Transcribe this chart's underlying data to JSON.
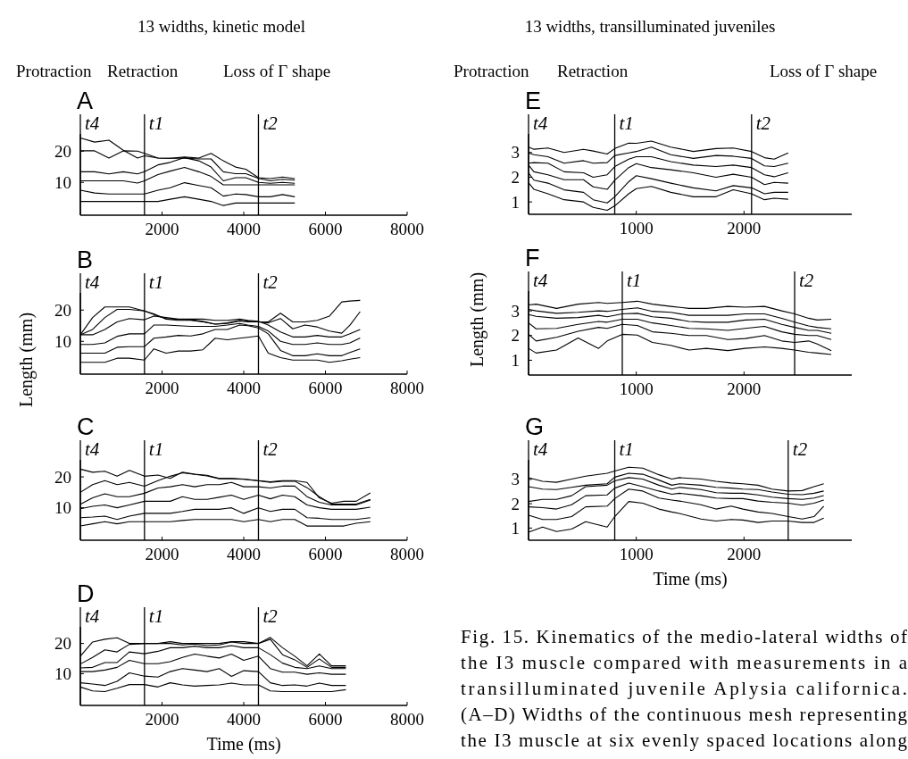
{
  "chart_data": [
    {
      "type": "line",
      "title": "A",
      "annotations": [
        "13 widths, kinetic model",
        "Protraction",
        "Retraction",
        "Loss of Γ shape"
      ],
      "xlim": [
        0,
        8000
      ],
      "ylim": [
        -0.5,
        25.5
      ],
      "xticks": [
        2000,
        4000,
        6000,
        8000
      ],
      "yticks": [
        10,
        20
      ],
      "x": [
        0,
        350,
        700,
        1050,
        1400,
        1570,
        1900,
        2200,
        2550,
        2900,
        3200,
        3500,
        3800,
        4050,
        4360,
        4650,
        4950,
        5250
      ],
      "ref_lines": [
        {
          "axis": "x",
          "value": 0,
          "label": "t4"
        },
        {
          "axis": "x",
          "value": 1570,
          "label": "t1"
        },
        {
          "axis": "x",
          "value": 4360,
          "label": "t2"
        }
      ],
      "series": [
        {
          "color": "#000000",
          "values": [
            24.2,
            22.9,
            23.5,
            20.3,
            17.8,
            18.5,
            17.8,
            17.7,
            18.1,
            17.8,
            19.3,
            16.9,
            14.9,
            14.2,
            11.5,
            11.2,
            11.7,
            11.2
          ]
        },
        {
          "color": "#000000",
          "values": [
            20.1,
            20.1,
            17.8,
            20.1,
            20,
            19.3,
            17.8,
            17.7,
            17.8,
            17.5,
            17.5,
            13.4,
            12.8,
            12.8,
            11.3,
            10.5,
            11,
            10.7
          ]
        },
        {
          "color": "#000000",
          "values": [
            13.4,
            13.4,
            12.7,
            13.4,
            12.7,
            13.4,
            15.6,
            16.4,
            17.9,
            16.9,
            14.9,
            10.5,
            11.5,
            11.5,
            10,
            9.7,
            10,
            9.7
          ]
        },
        {
          "color": "#000000",
          "values": [
            10.5,
            10.5,
            10.5,
            10.5,
            9.8,
            10.5,
            12.5,
            13.6,
            14.8,
            13.4,
            11.9,
            9.2,
            9.2,
            9.2,
            9.2,
            9.2,
            9.2,
            9.2
          ]
        },
        {
          "color": "#000000",
          "values": [
            7.5,
            6.6,
            6.3,
            6.3,
            6.3,
            6.3,
            7.5,
            8.3,
            9.9,
            9,
            8.3,
            5.6,
            6.3,
            6.1,
            5.4,
            5.4,
            6.1,
            5.4
          ]
        },
        {
          "color": "#000000",
          "values": [
            3.9,
            3.9,
            3.9,
            3.9,
            3.9,
            3.9,
            3.9,
            4.6,
            5.4,
            4.6,
            3.9,
            2.6,
            3.4,
            3.4,
            3.4,
            3.4,
            3.4,
            3.4
          ]
        }
      ]
    },
    {
      "type": "line",
      "title": "B",
      "ylabel": "Length (mm)",
      "xlim": [
        0,
        8000
      ],
      "ylim": [
        -0.5,
        25.5
      ],
      "xticks": [
        2000,
        4000,
        6000,
        8000
      ],
      "yticks": [
        10,
        20
      ],
      "x": [
        0,
        300,
        600,
        900,
        1200,
        1570,
        1800,
        2100,
        2400,
        2700,
        3000,
        3300,
        3600,
        3900,
        4100,
        4360,
        4600,
        4900,
        5200,
        5500,
        5800,
        6100,
        6400,
        6600,
        6850
      ],
      "ref_lines": [
        {
          "axis": "x",
          "value": 0,
          "label": "t4"
        },
        {
          "axis": "x",
          "value": 1570,
          "label": "t1"
        },
        {
          "axis": "x",
          "value": 4360,
          "label": "t2"
        }
      ],
      "series": [
        {
          "color": "#000000",
          "values": [
            12.1,
            17.6,
            21,
            21,
            21,
            19.7,
            18.6,
            17.3,
            17,
            16.9,
            16.4,
            15.5,
            15.9,
            16.7,
            16.5,
            16.2,
            16.2,
            19,
            16.2,
            16.2,
            16.7,
            18.1,
            22.6,
            22.9,
            23.1
          ]
        },
        {
          "color": "#000000",
          "values": [
            12.1,
            13.8,
            17.6,
            20.2,
            20.2,
            19.7,
            18.8,
            17.1,
            16.7,
            16.7,
            16.2,
            15.5,
            15.7,
            16.5,
            16.2,
            16.2,
            15.9,
            17.3,
            14,
            15.2,
            14.6,
            13.3,
            12.6,
            15.2,
            19.5
          ]
        },
        {
          "color": "#000000",
          "values": [
            12.1,
            12.1,
            13.8,
            16.2,
            17.3,
            16.9,
            18.1,
            17.6,
            17.1,
            17.1,
            17.1,
            16.7,
            16.7,
            17.1,
            16.7,
            16.4,
            15.2,
            13,
            11.4,
            11.4,
            11.9,
            11.4,
            11.4,
            12.4,
            13.8
          ]
        },
        {
          "color": "#000000",
          "values": [
            9,
            9,
            9.5,
            11.6,
            12.4,
            12.4,
            15.2,
            15.2,
            15,
            14.8,
            14.8,
            14.8,
            15.2,
            15.7,
            15.2,
            14.8,
            13.3,
            10,
            9,
            9,
            9.5,
            9,
            9,
            9.5,
            11.1
          ]
        },
        {
          "color": "#000000",
          "values": [
            6.2,
            6.2,
            6.2,
            8.1,
            8.3,
            8.3,
            11,
            11.4,
            11.9,
            11.7,
            12.4,
            13.8,
            13.8,
            15.2,
            15,
            14.3,
            12.4,
            7.1,
            5.4,
            5.4,
            6,
            5.4,
            5.4,
            6.4,
            7.6
          ]
        },
        {
          "color": "#000000",
          "values": [
            3.3,
            3.3,
            3.3,
            4.6,
            4.6,
            4,
            7.6,
            6.2,
            6.9,
            6.9,
            7.3,
            11,
            10.5,
            11,
            11.3,
            11.7,
            6.2,
            4.8,
            4,
            4,
            4,
            3.3,
            3.8,
            4.3,
            4.8
          ]
        }
      ]
    },
    {
      "type": "line",
      "title": "C",
      "xlim": [
        0,
        8000
      ],
      "ylim": [
        -0.5,
        25.5
      ],
      "xticks": [
        2000,
        4000,
        6000,
        8000
      ],
      "yticks": [
        10,
        20
      ],
      "x": [
        0,
        300,
        600,
        900,
        1200,
        1570,
        1900,
        2200,
        2500,
        2800,
        3100,
        3400,
        3700,
        4000,
        4360,
        4650,
        4950,
        5250,
        5550,
        5850,
        6150,
        6450,
        6750,
        7100
      ],
      "ref_lines": [
        {
          "axis": "x",
          "value": 0,
          "label": "t4"
        },
        {
          "axis": "x",
          "value": 1570,
          "label": "t1"
        },
        {
          "axis": "x",
          "value": 4360,
          "label": "t2"
        }
      ],
      "series": [
        {
          "color": "#000000",
          "values": [
            22.5,
            21.5,
            21.8,
            20.2,
            22.1,
            20.2,
            20.6,
            19.5,
            21.5,
            20.9,
            20.5,
            19.5,
            19.5,
            19.3,
            18.8,
            18.4,
            18.8,
            18.8,
            18.2,
            13.2,
            11.5,
            12.1,
            12.1,
            14.8
          ]
        },
        {
          "color": "#000000",
          "values": [
            15,
            17.5,
            18.8,
            17.5,
            18.2,
            17,
            18.8,
            20.2,
            21.3,
            20.8,
            20.3,
            19.4,
            19.4,
            19.2,
            18.7,
            18.2,
            18.6,
            18.6,
            16.5,
            13.6,
            11.2,
            11.2,
            11.2,
            12.7
          ]
        },
        {
          "color": "#000000",
          "values": [
            11.1,
            13.2,
            14.5,
            13.6,
            13.6,
            14.7,
            16.4,
            16.8,
            17.5,
            16.8,
            17.5,
            17.5,
            18.2,
            16.8,
            16.8,
            16.4,
            17,
            17,
            13.6,
            11.8,
            10.9,
            10.9,
            10.9,
            12.5
          ]
        },
        {
          "color": "#000000",
          "values": [
            9.7,
            10.5,
            10.9,
            10,
            10.9,
            12.1,
            12.1,
            12.1,
            13.6,
            12.7,
            12.7,
            13.4,
            14.1,
            12.7,
            14.1,
            12.9,
            14.1,
            13.6,
            10.9,
            10,
            9.5,
            9.5,
            9.5,
            10.2
          ]
        },
        {
          "color": "#000000",
          "values": [
            6.8,
            7,
            7.3,
            6.2,
            7.3,
            8.2,
            8.2,
            8.2,
            8.8,
            9.5,
            9.5,
            9.5,
            10,
            8.2,
            10,
            8.8,
            9.5,
            9.5,
            6.8,
            6.6,
            6.2,
            6.2,
            6.2,
            6.8
          ]
        },
        {
          "color": "#000000",
          "values": [
            4.1,
            4.8,
            5.5,
            4.8,
            5.5,
            5.5,
            5.5,
            5.5,
            5.9,
            6.2,
            6.2,
            6.2,
            6.2,
            5.5,
            6.2,
            5.5,
            6.2,
            6.2,
            4.1,
            4.1,
            4.1,
            4.1,
            5,
            5.5
          ]
        }
      ]
    },
    {
      "type": "line",
      "title": "D",
      "xlabel": "Time (ms)",
      "xlim": [
        0,
        8000
      ],
      "ylim": [
        -0.5,
        25.5
      ],
      "xticks": [
        2000,
        4000,
        6000,
        8000
      ],
      "yticks": [
        10,
        20
      ],
      "x": [
        0,
        300,
        600,
        900,
        1200,
        1570,
        1900,
        2200,
        2500,
        2800,
        3100,
        3400,
        3700,
        4000,
        4360,
        4650,
        4950,
        5250,
        5550,
        5850,
        6150,
        6500
      ],
      "ref_lines": [
        {
          "axis": "x",
          "value": 0,
          "label": "t4"
        },
        {
          "axis": "x",
          "value": 1570,
          "label": "t1"
        },
        {
          "axis": "x",
          "value": 4360,
          "label": "t2"
        }
      ],
      "series": [
        {
          "color": "#000000",
          "values": [
            15.8,
            20.5,
            21.4,
            21.9,
            20,
            20,
            20,
            20.6,
            20,
            20,
            20,
            20,
            20.6,
            20.6,
            20,
            22,
            18.6,
            15.8,
            12.6,
            16.5,
            12.6,
            12.6
          ]
        },
        {
          "color": "#000000",
          "values": [
            13.2,
            15.4,
            17.9,
            17.2,
            19.7,
            20,
            20,
            20,
            19.5,
            19.8,
            19.3,
            19.5,
            20.5,
            20,
            20,
            21.4,
            16.3,
            14.6,
            12.1,
            14.9,
            12.1,
            12.1
          ]
        },
        {
          "color": "#000000",
          "values": [
            11.9,
            12.1,
            13.7,
            13.7,
            17.2,
            16.6,
            17.4,
            18.6,
            18.6,
            19.1,
            18.6,
            18.6,
            19.3,
            18.6,
            18.6,
            16.3,
            13.5,
            12.1,
            11.7,
            12.6,
            11.7,
            11.7
          ]
        },
        {
          "color": "#000000",
          "values": [
            10.7,
            10.7,
            11.2,
            12.1,
            14.4,
            13.3,
            13.3,
            14,
            15.4,
            16.5,
            15.8,
            15.2,
            16.5,
            14.4,
            15.8,
            11.7,
            10.5,
            10.5,
            9.8,
            10.3,
            9.8,
            9.8
          ]
        },
        {
          "color": "#000000",
          "values": [
            7,
            6.6,
            6.1,
            7.5,
            10.3,
            9.2,
            8.9,
            10.7,
            11.7,
            11.2,
            10.7,
            11.7,
            9.1,
            11,
            10.7,
            7,
            6.1,
            6.3,
            5.9,
            6.9,
            6.1,
            6.1
          ]
        },
        {
          "color": "#000000",
          "values": [
            5.6,
            4.3,
            4.1,
            5.2,
            6.4,
            6.4,
            5.6,
            7,
            6.3,
            5.9,
            6.1,
            6.3,
            6.9,
            6.3,
            6.3,
            4.3,
            4.1,
            4.1,
            4.1,
            4.1,
            4.1,
            4.7
          ]
        }
      ]
    },
    {
      "type": "line",
      "title": "E",
      "annotations": [
        "13 widths, transilluminated juveniles",
        "Protraction",
        "Retraction",
        "Loss of Γ shape"
      ],
      "xlim": [
        0,
        3000
      ],
      "ylim": [
        0.5,
        3.75
      ],
      "xticks": [
        1000,
        2000
      ],
      "yticks": [
        1,
        2,
        3
      ],
      "x": [
        0,
        50,
        180,
        330,
        510,
        600,
        730,
        800,
        930,
        1000,
        1140,
        1320,
        1530,
        1740,
        1900,
        2070,
        2190,
        2280,
        2410
      ],
      "ref_lines": [
        {
          "axis": "x",
          "value": 0,
          "label": "t4"
        },
        {
          "axis": "x",
          "value": 800,
          "label": "t1"
        },
        {
          "axis": "x",
          "value": 2070,
          "label": "t2"
        }
      ],
      "series": [
        {
          "color": "#000000",
          "values": [
            3.22,
            3.13,
            3.18,
            3,
            3.13,
            3.06,
            2.94,
            3.16,
            3.38,
            3.37,
            3.46,
            3.22,
            3.04,
            3.16,
            3.18,
            3.04,
            2.79,
            2.73,
            2.98
          ]
        },
        {
          "color": "#000000",
          "values": [
            2.98,
            2.91,
            2.83,
            2.57,
            2.67,
            2.57,
            2.59,
            2.88,
            2.98,
            3.04,
            3.22,
            2.91,
            2.76,
            2.88,
            2.85,
            2.76,
            2.46,
            2.43,
            2.57
          ]
        },
        {
          "color": "#000000",
          "values": [
            2.57,
            2.59,
            2.57,
            2.22,
            2.18,
            2,
            2.1,
            2.43,
            2.73,
            2.83,
            2.83,
            2.63,
            2.49,
            2.43,
            2.49,
            2.39,
            2.1,
            2.02,
            2.18
          ]
        },
        {
          "color": "#000000",
          "values": [
            2.49,
            2.22,
            2.1,
            1.9,
            1.9,
            1.61,
            1.51,
            1.88,
            2.39,
            2.55,
            2.39,
            2.3,
            2.18,
            2,
            2.12,
            2,
            1.7,
            1.79,
            1.76
          ]
        },
        {
          "color": "#000000",
          "values": [
            2.18,
            1.88,
            1.76,
            1.49,
            1.39,
            1.09,
            0.96,
            1.21,
            1.82,
            2.06,
            1.94,
            1.76,
            1.57,
            1.45,
            1.66,
            1.57,
            1.33,
            1.39,
            1.39
          ]
        },
        {
          "color": "#000000",
          "values": [
            1.78,
            1.51,
            1.33,
            1.09,
            1,
            0.78,
            0.66,
            0.84,
            1.33,
            1.54,
            1.63,
            1.39,
            1.21,
            1.21,
            1.49,
            1.33,
            1.09,
            1.15,
            1.11
          ]
        }
      ]
    },
    {
      "type": "line",
      "title": "F",
      "ylabel": "Length (mm)",
      "xlim": [
        0,
        3000
      ],
      "ylim": [
        0.4,
        3.8
      ],
      "xticks": [
        1000,
        2000
      ],
      "yticks": [
        1,
        2,
        3
      ],
      "x": [
        0,
        70,
        260,
        460,
        650,
        730,
        870,
        1010,
        1150,
        1320,
        1490,
        1650,
        1850,
        2010,
        2190,
        2350,
        2470,
        2600,
        2680,
        2810
      ],
      "ref_lines": [
        {
          "axis": "x",
          "value": 0,
          "label": "t4"
        },
        {
          "axis": "x",
          "value": 870,
          "label": "t1"
        },
        {
          "axis": "x",
          "value": 2470,
          "label": "t2"
        }
      ],
      "series": [
        {
          "color": "#000000",
          "values": [
            3.24,
            3.27,
            3.1,
            3.27,
            3.34,
            3.3,
            3.34,
            3.39,
            3.27,
            3.18,
            3.1,
            3.1,
            3.18,
            3.15,
            3.18,
            3,
            2.88,
            2.7,
            2.63,
            2.66
          ]
        },
        {
          "color": "#000000",
          "values": [
            3.06,
            3,
            2.9,
            2.94,
            3,
            2.98,
            3.06,
            3.12,
            2.98,
            2.94,
            2.82,
            2.82,
            2.82,
            2.88,
            2.88,
            2.7,
            2.54,
            2.39,
            2.33,
            2.27
          ]
        },
        {
          "color": "#000000",
          "values": [
            2.85,
            2.78,
            2.7,
            2.73,
            2.82,
            2.76,
            2.88,
            2.9,
            2.76,
            2.7,
            2.57,
            2.54,
            2.54,
            2.63,
            2.66,
            2.45,
            2.33,
            2.21,
            2.21,
            2.09
          ]
        },
        {
          "color": "#000000",
          "values": [
            2.51,
            2.27,
            2.29,
            2.45,
            2.57,
            2.54,
            2.66,
            2.66,
            2.51,
            2.41,
            2.29,
            2.27,
            2.21,
            2.29,
            2.37,
            2.15,
            2.05,
            2,
            2,
            1.84
          ]
        },
        {
          "color": "#000000",
          "values": [
            2.05,
            1.78,
            1.93,
            2.17,
            2.33,
            2.29,
            2.45,
            2.41,
            2.15,
            2.09,
            2,
            2,
            1.84,
            1.88,
            2,
            1.78,
            1.72,
            1.78,
            1.66,
            1.39
          ]
        },
        {
          "color": "#000000",
          "values": [
            1.48,
            1.29,
            1.41,
            1.9,
            1.48,
            1.78,
            2.05,
            2.02,
            1.72,
            1.6,
            1.41,
            1.48,
            1.39,
            1.48,
            1.54,
            1.48,
            1.41,
            1.32,
            1.29,
            1.23
          ]
        }
      ]
    },
    {
      "type": "line",
      "title": "G",
      "xlabel": "Time (ms)",
      "annotations": [
        "Fig. 15. Kinematics of the medio-lateral widths of",
        "the I3 muscle compared with measurements in a",
        "transilluminated juvenile Aplysia californica.",
        "(A–D) Widths of the continuous mesh representing",
        "the I3 muscle at six evenly spaced locations along"
      ],
      "xlim": [
        0,
        3000
      ],
      "ylim": [
        0.5,
        3.8
      ],
      "xticks": [
        1000,
        2000
      ],
      "yticks": [
        1,
        2,
        3
      ],
      "x": [
        0,
        130,
        260,
        400,
        530,
        730,
        800,
        930,
        1060,
        1210,
        1330,
        1400,
        1600,
        1740,
        1880,
        1990,
        2130,
        2260,
        2410,
        2540,
        2650,
        2740
      ],
      "ref_lines": [
        {
          "axis": "x",
          "value": 0,
          "label": "t4"
        },
        {
          "axis": "x",
          "value": 800,
          "label": "t1"
        },
        {
          "axis": "x",
          "value": 2410,
          "label": "t2"
        }
      ],
      "series": [
        {
          "color": "#000000",
          "values": [
            3.07,
            2.92,
            2.88,
            3.01,
            3.13,
            3.25,
            3.34,
            3.5,
            3.46,
            3.19,
            3.01,
            3.07,
            3.01,
            2.92,
            2.85,
            2.82,
            2.76,
            2.6,
            2.52,
            2.54,
            2.7,
            2.82
          ]
        },
        {
          "color": "#000000",
          "values": [
            2.7,
            2.6,
            2.58,
            2.67,
            2.76,
            2.82,
            3.09,
            3.25,
            3.21,
            2.97,
            2.76,
            2.82,
            2.76,
            2.67,
            2.64,
            2.6,
            2.58,
            2.48,
            2.39,
            2.37,
            2.43,
            2.52
          ]
        },
        {
          "color": "#000000",
          "values": [
            2.09,
            2.18,
            2.18,
            2.33,
            2.7,
            2.76,
            2.94,
            3.07,
            3.01,
            2.76,
            2.6,
            2.67,
            2.58,
            2.45,
            2.43,
            2.43,
            2.36,
            2.27,
            2.21,
            2.18,
            2.23,
            2.33
          ]
        },
        {
          "color": "#000000",
          "values": [
            1.87,
            1.84,
            1.78,
            1.96,
            2.33,
            2.36,
            2.64,
            2.85,
            2.7,
            2.52,
            2.39,
            2.43,
            2.33,
            2.23,
            2.21,
            2.21,
            2.11,
            2.06,
            2.02,
            1.94,
            2.02,
            2.15
          ]
        },
        {
          "color": "#000000",
          "values": [
            1.53,
            1.35,
            1.35,
            1.47,
            1.87,
            1.9,
            2.21,
            2.6,
            2.52,
            2.23,
            2.15,
            2.11,
            1.96,
            1.78,
            1.9,
            1.78,
            1.66,
            1.6,
            1.47,
            1.37,
            1.47,
            1.9
          ]
        },
        {
          "color": "#000000",
          "values": [
            0.83,
            1.04,
            0.86,
            0.96,
            1.26,
            1.04,
            1.47,
            2.09,
            2.02,
            1.78,
            1.66,
            1.6,
            1.37,
            1.29,
            1.35,
            1.33,
            1.23,
            1.29,
            1.29,
            1.23,
            1.23,
            1.41
          ]
        }
      ]
    }
  ]
}
